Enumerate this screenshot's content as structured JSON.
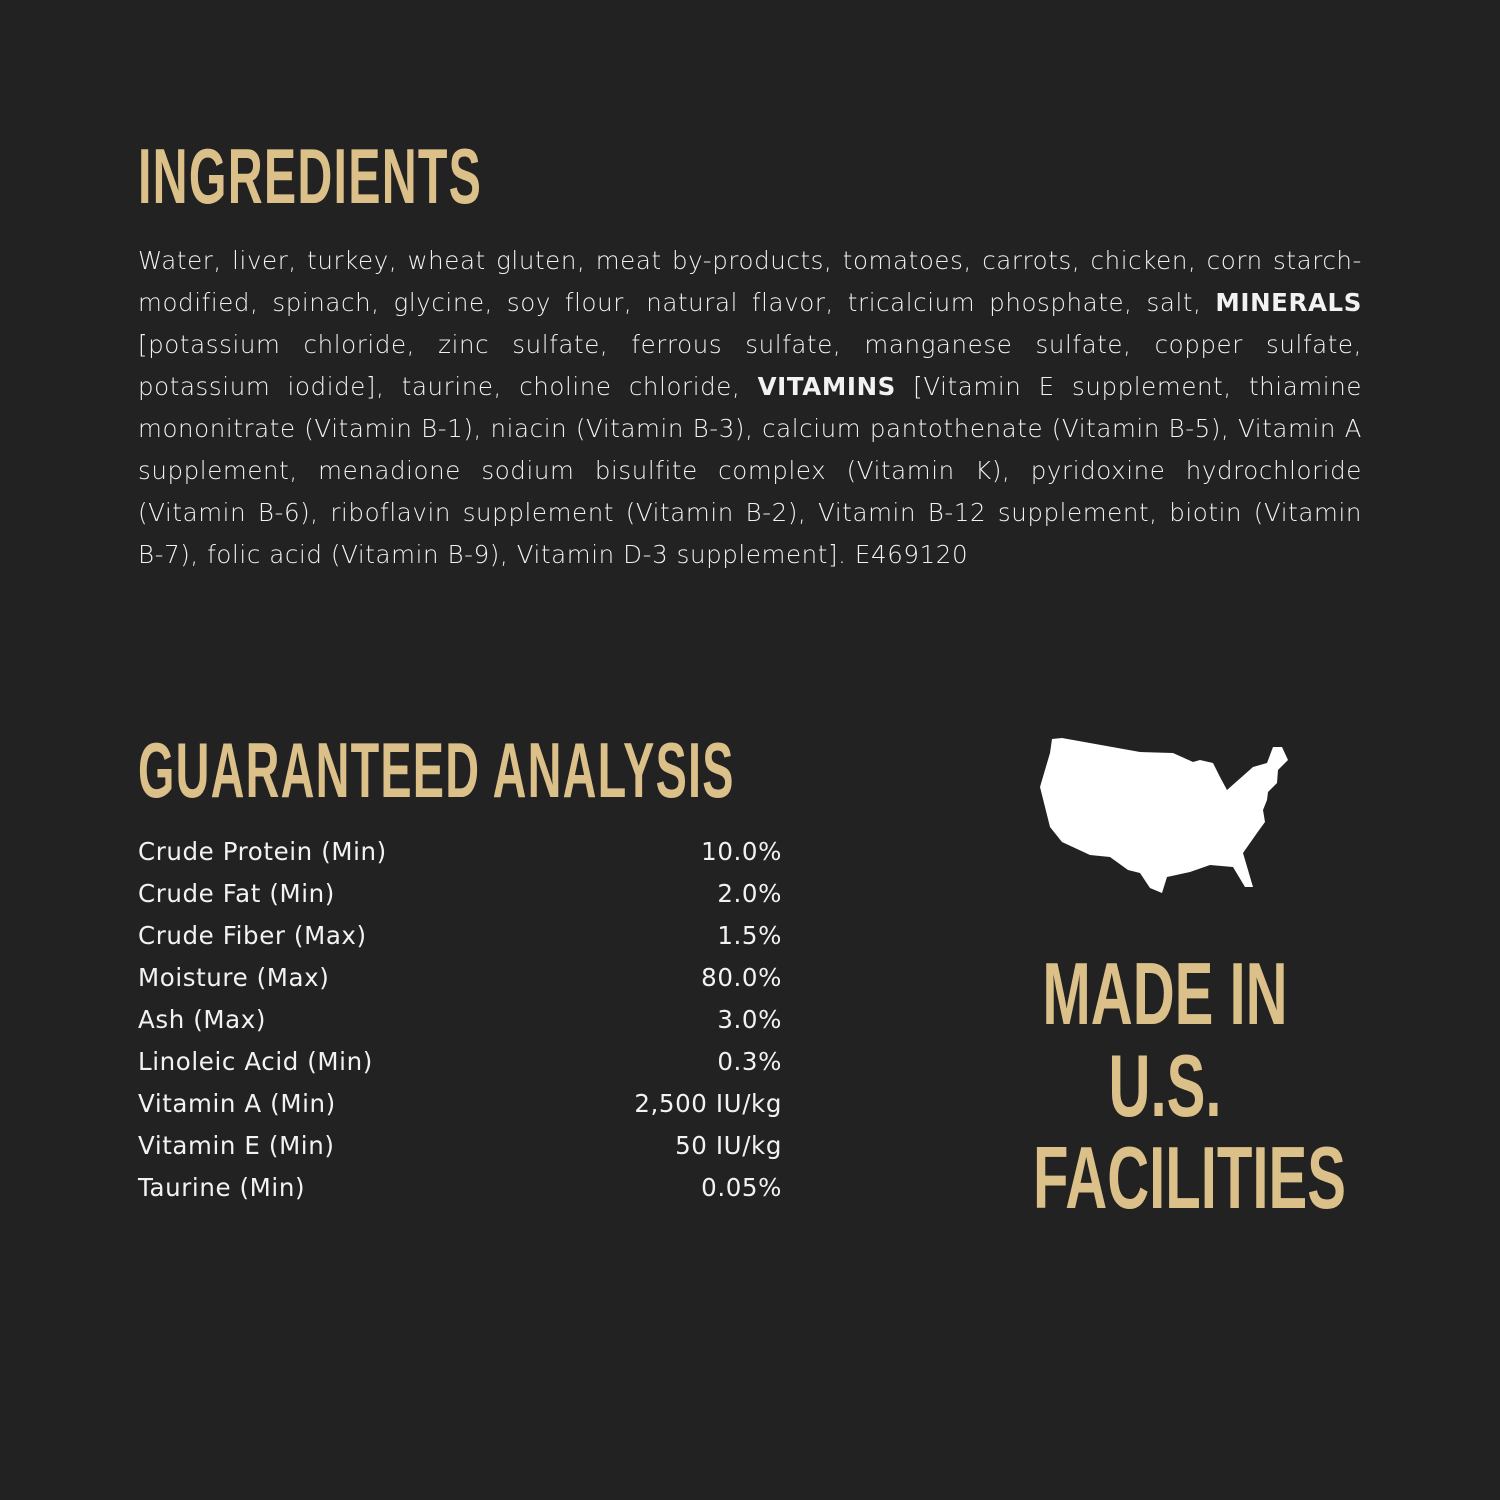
{
  "ingredients": {
    "title": "INGREDIENTS",
    "text_part1": "Water, liver, turkey, wheat gluten, meat by-products, tomatoes, carrots, chicken, corn starch-modified, spinach, glycine, soy flour, natural flavor, tricalcium phosphate, salt, ",
    "minerals_label": "MINERALS",
    "text_part2": " [potassium chloride, zinc sulfate, ferrous sulfate, manganese sulfate, copper sulfate, potassium iodide], taurine, choline chloride, ",
    "vitamins_label": "VITAMINS",
    "text_part3": " [Vitamin E supplement, thiamine mononitrate (Vitamin B-1), niacin (Vitamin B-3), calcium pantothenate (Vitamin B-5), Vitamin A supplement, menadione sodium bisulfite complex (Vitamin K), pyridoxine hydrochloride (Vitamin B-6), riboflavin supplement (Vitamin B-2), Vitamin B-12 supplement, biotin (Vitamin B-7), folic acid (Vitamin B-9), Vitamin D-3 supplement].  E469120"
  },
  "analysis": {
    "title": "GUARANTEED ANALYSIS",
    "rows": [
      {
        "label": "Crude Protein (Min)",
        "value": "10.0%"
      },
      {
        "label": "Crude Fat (Min)",
        "value": "2.0%"
      },
      {
        "label": "Crude Fiber (Max)",
        "value": "1.5%"
      },
      {
        "label": "Moisture (Max)",
        "value": "80.0%"
      },
      {
        "label": "Ash (Max)",
        "value": "3.0%"
      },
      {
        "label": "Linoleic Acid (Min)",
        "value": "0.3%"
      },
      {
        "label": "Vitamin A (Min)",
        "value": "2,500 IU/kg"
      },
      {
        "label": "Vitamin E (Min)",
        "value": "50 IU/kg"
      },
      {
        "label": "Taurine (Min)",
        "value": "0.05%"
      }
    ]
  },
  "origin": {
    "icon": "usa-map-icon",
    "lines": [
      "MADE IN",
      "U.S.",
      "FACILITIES"
    ]
  },
  "colors": {
    "background": "#222222",
    "heading": "#dcc089",
    "text": "#f2f2f2"
  }
}
